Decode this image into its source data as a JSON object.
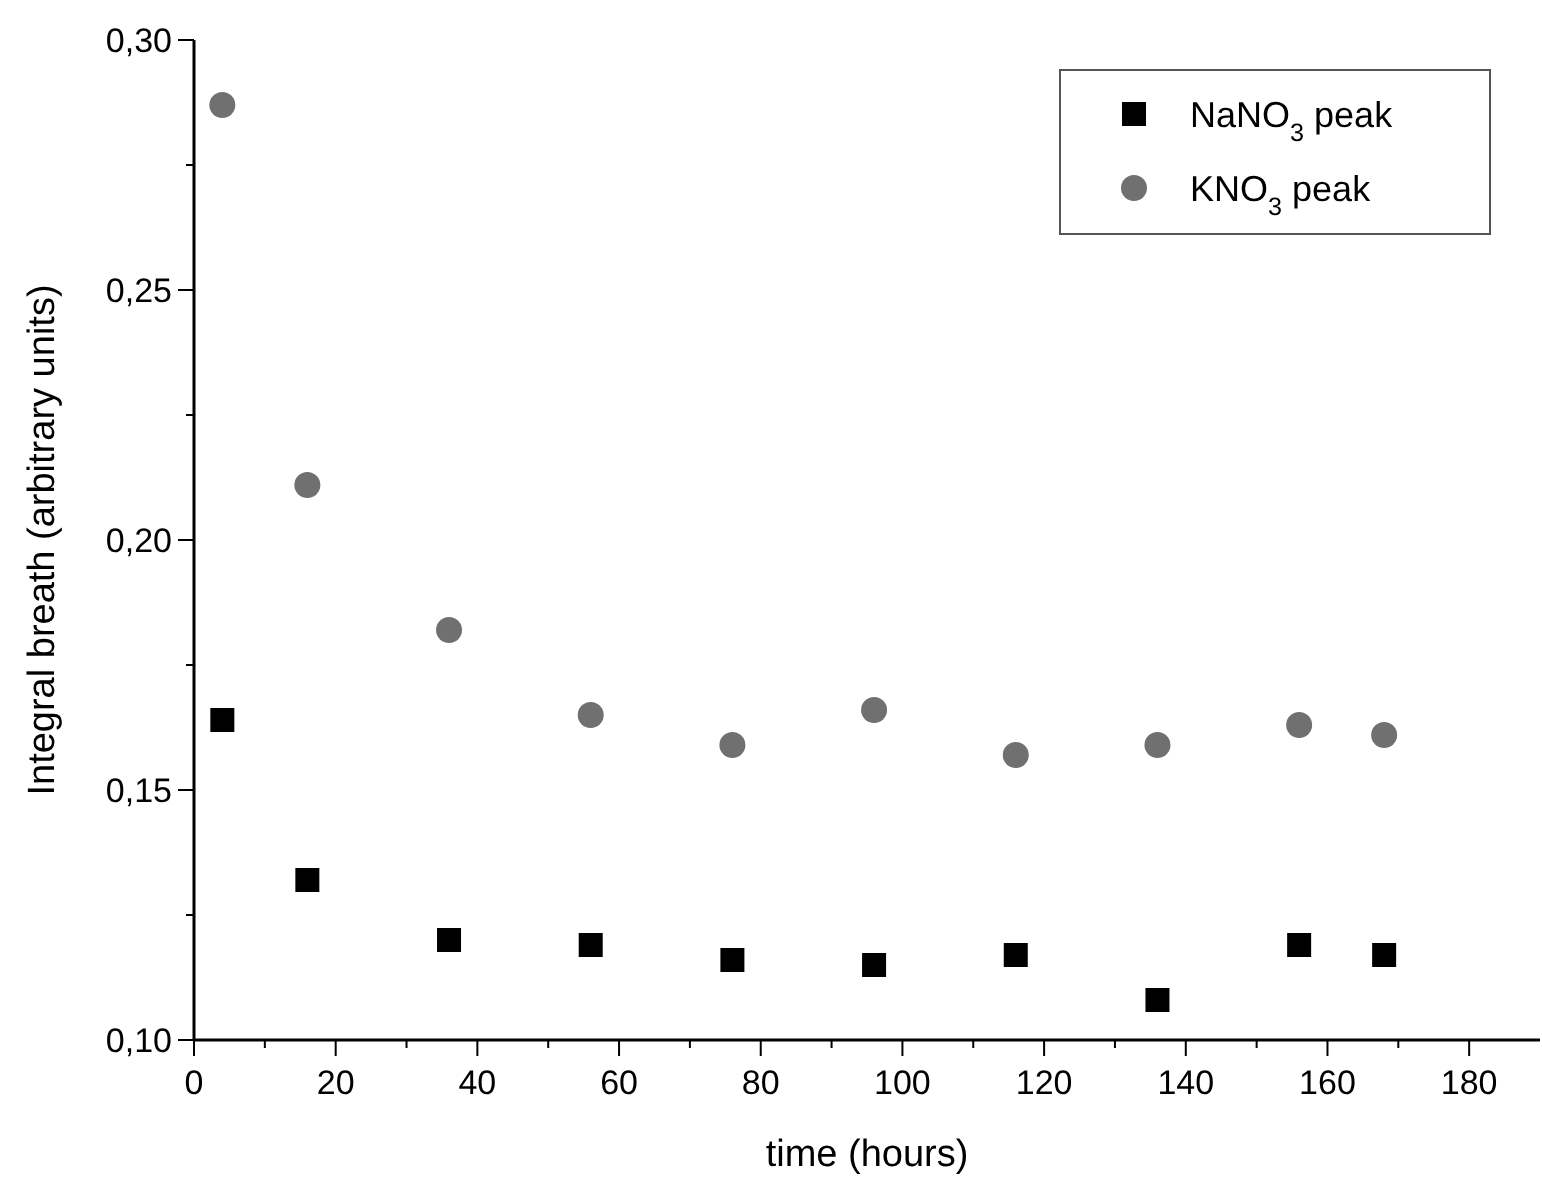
{
  "chart_data": {
    "type": "scatter",
    "xlabel": "time (hours)",
    "ylabel": "Integral breath (arbitrary units)",
    "x": [
      4,
      16,
      36,
      56,
      76,
      96,
      116,
      136,
      156,
      168
    ],
    "series": [
      {
        "name": "NaNO$_{3}$ peak",
        "color": "#000000",
        "marker": "square",
        "values": [
          0.164,
          0.132,
          0.12,
          0.119,
          0.116,
          0.115,
          0.117,
          0.108,
          0.119,
          0.117
        ]
      },
      {
        "name": "KNO$_{3}$ peak",
        "color": "#707070",
        "marker": "circle",
        "values": [
          0.287,
          0.211,
          0.182,
          0.165,
          0.159,
          0.166,
          0.157,
          0.159,
          0.163,
          0.161
        ]
      }
    ],
    "xlim": [
      0,
      190
    ],
    "xticks": [
      0,
      {
        "value": 10,
        "label": null
      },
      20,
      {
        "value": 30,
        "label": null
      },
      40,
      {
        "value": 50,
        "label": null
      },
      60,
      {
        "value": 70,
        "label": null
      },
      80,
      {
        "value": 90,
        "label": null
      },
      100,
      {
        "value": 110,
        "label": null
      },
      120,
      {
        "value": 130,
        "label": null
      },
      140,
      {
        "value": 150,
        "label": null
      },
      160,
      {
        "value": 170,
        "label": null
      },
      180
    ],
    "ylim": [
      0.1,
      0.3
    ],
    "yticks": [
      {
        "value": 0.1,
        "label": "0,10"
      },
      {
        "value": 0.125,
        "label": null
      },
      {
        "value": 0.15,
        "label": "0,15"
      },
      {
        "value": 0.175,
        "label": null
      },
      {
        "value": 0.2,
        "label": "0,20"
      },
      {
        "value": 0.225,
        "label": null
      },
      {
        "value": 0.25,
        "label": "0,25"
      },
      {
        "value": 0.275,
        "label": null
      },
      {
        "value": 0.3,
        "label": "0,30"
      }
    ],
    "grid": false,
    "legend": "top right"
  }
}
